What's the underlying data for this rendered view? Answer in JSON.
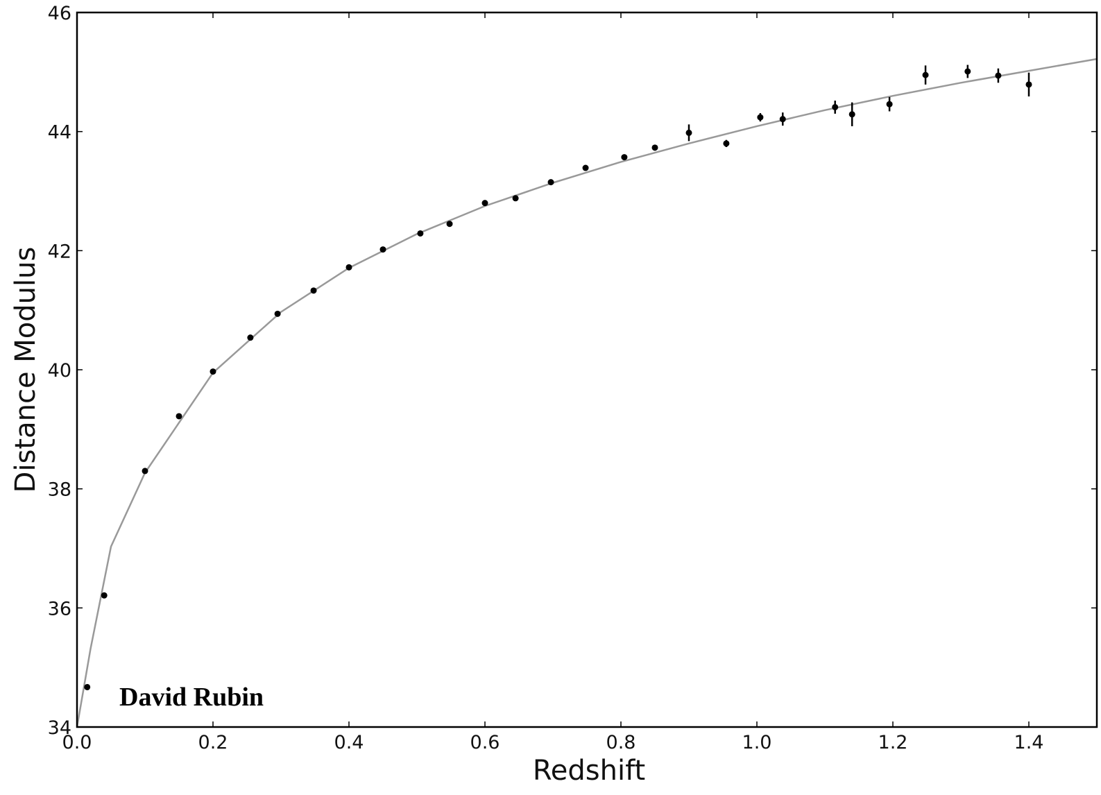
{
  "chart_data": {
    "type": "scatter",
    "title": "",
    "xlabel": "Redshift",
    "ylabel": "Distance Modulus",
    "xlim": [
      0.0,
      1.5
    ],
    "ylim": [
      34,
      46
    ],
    "xticks": [
      "0.0",
      "0.2",
      "0.4",
      "0.6",
      "0.8",
      "1.0",
      "1.2",
      "1.4"
    ],
    "yticks": [
      "34",
      "36",
      "38",
      "40",
      "42",
      "44",
      "46"
    ],
    "grid": false,
    "annotation": "David Rubin",
    "point_color": "#000000",
    "curve_color": "#999999",
    "series": [
      {
        "kind": "points_with_errorbars",
        "x": [
          0.015,
          0.04,
          0.1,
          0.15,
          0.2,
          0.255,
          0.295,
          0.348,
          0.4,
          0.45,
          0.505,
          0.548,
          0.6,
          0.645,
          0.697,
          0.748,
          0.805,
          0.85,
          0.9,
          0.955,
          1.005,
          1.038,
          1.115,
          1.14,
          1.195,
          1.248,
          1.31,
          1.355,
          1.4
        ],
        "y": [
          34.67,
          36.21,
          38.3,
          39.22,
          39.97,
          40.54,
          40.94,
          41.33,
          41.72,
          42.02,
          42.29,
          42.45,
          42.8,
          42.88,
          43.15,
          43.39,
          43.57,
          43.73,
          43.98,
          43.8,
          44.24,
          44.21,
          44.41,
          44.29,
          44.46,
          44.95,
          45.01,
          44.94,
          44.79
        ],
        "err": [
          0.0,
          0.0,
          0.0,
          0.0,
          0.0,
          0.0,
          0.0,
          0.0,
          0.0,
          0.0,
          0.0,
          0.0,
          0.0,
          0.0,
          0.04,
          0.04,
          0.04,
          0.05,
          0.14,
          0.06,
          0.07,
          0.11,
          0.11,
          0.2,
          0.12,
          0.16,
          0.11,
          0.12,
          0.2
        ]
      },
      {
        "kind": "model_curve",
        "x": [
          0.0,
          0.02,
          0.05,
          0.1,
          0.2,
          0.3,
          0.4,
          0.5,
          0.6,
          0.7,
          0.8,
          0.9,
          1.0,
          1.1,
          1.2,
          1.3,
          1.4,
          1.5
        ],
        "y": [
          33.5,
          35.32,
          37.03,
          38.27,
          39.95,
          40.97,
          41.71,
          42.28,
          42.75,
          43.14,
          43.49,
          43.8,
          44.09,
          44.36,
          44.6,
          44.82,
          45.02,
          45.22
        ]
      }
    ]
  }
}
